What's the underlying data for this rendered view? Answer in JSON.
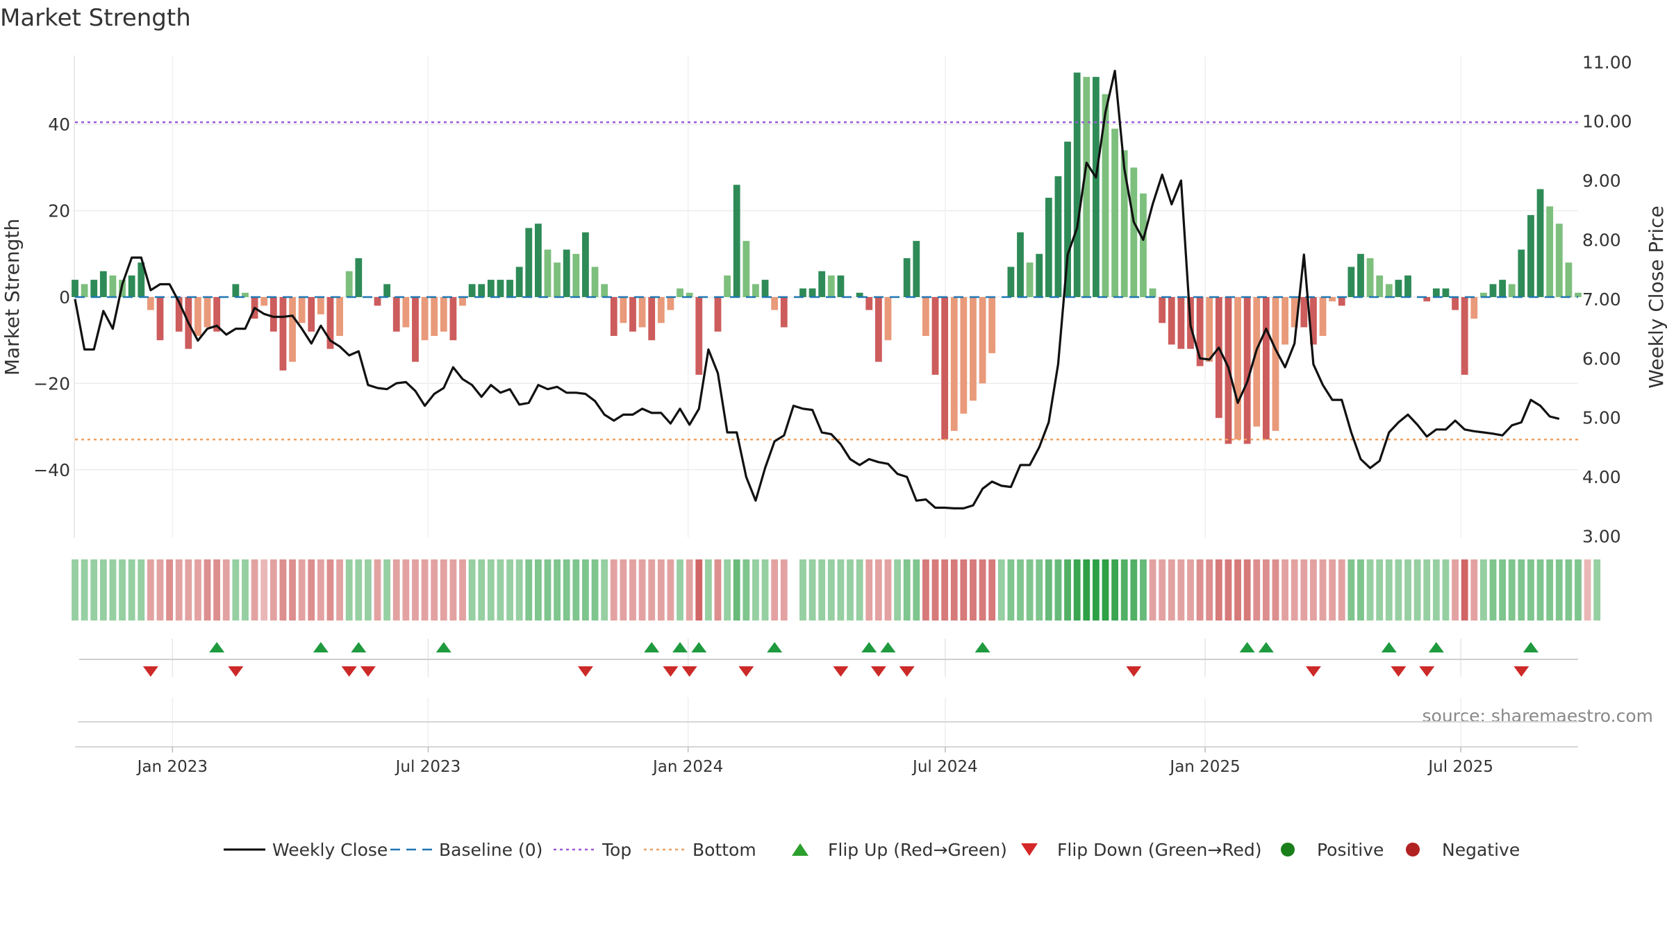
{
  "chart_data": {
    "type": "bar",
    "title": "Market Strength",
    "ylabel": "Market Strength",
    "y2label": "Weekly Close Price",
    "ylim": [
      -56,
      56
    ],
    "y2lim": [
      3.0,
      11.0
    ],
    "yticks": [
      40,
      20,
      0,
      -20,
      -40
    ],
    "y2ticks": [
      "3.00",
      "4.00",
      "5.00",
      "6.00",
      "7.00",
      "8.00",
      "9.00",
      "10.00",
      "11.00"
    ],
    "grid": true,
    "legend_position": "bottom",
    "source": "source: sharemaestro.com",
    "x_start": "2022-10-24",
    "x_end": "2025-09-22",
    "xticks": [
      {
        "date": "2023-01-01",
        "label": "Jan 2023"
      },
      {
        "date": "2023-07-01",
        "label": "Jul 2023"
      },
      {
        "date": "2024-01-01",
        "label": "Jan 2024"
      },
      {
        "date": "2024-07-01",
        "label": "Jul 2024"
      },
      {
        "date": "2025-01-01",
        "label": "Jan 2025"
      },
      {
        "date": "2025-07-01",
        "label": "Jul 2025"
      }
    ],
    "reference_lines": [
      {
        "name": "Baseline (0)",
        "value": 0,
        "color": "#1f77b4",
        "style": "dashed"
      },
      {
        "name": "Top",
        "value": 40.5,
        "color": "#9b59d6",
        "style": "dotted"
      },
      {
        "name": "Bottom",
        "value": -33,
        "color": "#f0a060",
        "style": "dotted"
      }
    ],
    "strength": [
      4,
      3,
      4,
      6,
      5,
      4,
      5,
      8,
      -3,
      -10,
      0,
      -8,
      -12,
      -9,
      -7,
      -8,
      0,
      3,
      1,
      -5,
      -2,
      -8,
      -17,
      -15,
      -6,
      -8,
      -4,
      -12,
      -9,
      6,
      9,
      0,
      -2,
      3,
      -8,
      -7,
      -15,
      -10,
      -9,
      -8,
      -10,
      -2,
      3,
      3,
      4,
      4,
      4,
      7,
      16,
      17,
      11,
      8,
      11,
      10,
      15,
      7,
      3,
      -9,
      -6,
      -8,
      -7,
      -10,
      -6,
      -3,
      2,
      1,
      -18,
      0,
      -8,
      5,
      26,
      13,
      3,
      4,
      -3,
      -7,
      0,
      2,
      2,
      6,
      5,
      5,
      0,
      1,
      -3,
      -15,
      -10,
      0,
      9,
      13,
      -9,
      -18,
      -33,
      -31,
      -27,
      -24,
      -20,
      -13,
      0,
      7,
      15,
      8,
      10,
      23,
      28,
      36,
      52,
      51,
      51,
      47,
      39,
      34,
      30,
      24,
      2,
      -6,
      -11,
      -12,
      -12,
      -16,
      -15,
      -28,
      -34,
      -33,
      -34,
      -30,
      -33,
      -31,
      -11,
      -7,
      -7,
      -11,
      -9,
      -1,
      -2,
      7,
      10,
      9,
      5,
      3,
      4,
      5,
      0,
      -1,
      2,
      2,
      -3,
      -18,
      -5,
      1,
      3,
      4,
      3,
      11,
      19,
      25,
      21,
      17,
      8,
      1
    ],
    "close": [
      7.0,
      6.15,
      6.15,
      6.8,
      6.5,
      7.25,
      7.7,
      7.7,
      7.15,
      7.25,
      7.25,
      6.95,
      6.6,
      6.3,
      6.5,
      6.55,
      6.4,
      6.5,
      6.5,
      6.85,
      6.75,
      6.7,
      6.7,
      6.72,
      6.5,
      6.25,
      6.55,
      6.3,
      6.2,
      6.05,
      6.12,
      5.55,
      5.5,
      5.48,
      5.58,
      5.6,
      5.45,
      5.2,
      5.4,
      5.5,
      5.85,
      5.65,
      5.55,
      5.35,
      5.55,
      5.42,
      5.48,
      5.22,
      5.25,
      5.55,
      5.48,
      5.52,
      5.42,
      5.42,
      5.4,
      5.28,
      5.05,
      4.95,
      5.05,
      5.05,
      5.15,
      5.08,
      5.08,
      4.9,
      5.15,
      4.88,
      5.15,
      6.15,
      5.75,
      4.75,
      4.75,
      4.0,
      3.6,
      4.15,
      4.6,
      4.7,
      5.2,
      5.15,
      5.13,
      4.75,
      4.72,
      4.55,
      4.3,
      4.2,
      4.3,
      4.25,
      4.22,
      4.05,
      4.0,
      3.6,
      3.62,
      3.48,
      3.48,
      3.47,
      3.47,
      3.52,
      3.8,
      3.92,
      3.85,
      3.83,
      4.2,
      4.2,
      4.5,
      4.92,
      5.9,
      7.75,
      8.2,
      9.3,
      9.05,
      10.15,
      10.85,
      9.2,
      8.3,
      8.0,
      8.6,
      9.1,
      8.6,
      9.0,
      6.55,
      6.0,
      5.98,
      6.18,
      5.85,
      5.25,
      5.6,
      6.15,
      6.5,
      6.15,
      5.85,
      6.25,
      7.75,
      5.9,
      5.55,
      5.3,
      5.3,
      4.75,
      4.3,
      4.15,
      4.27,
      4.75,
      4.92,
      5.05,
      4.88,
      4.68,
      4.8,
      4.8,
      4.95,
      4.8,
      4.77,
      4.75,
      4.73,
      4.7,
      4.87,
      4.92,
      5.3,
      5.2,
      5.02,
      4.98
    ],
    "bar_colors_by_level": {
      "strong_positive": "#2e8b57",
      "weak_positive": "#7dbf7d",
      "strong_negative": "#cd5c5c",
      "weak_negative": "#e99a7a"
    },
    "heat_strip": [
      2,
      2,
      2,
      2,
      2,
      2,
      2,
      2,
      -2,
      -2,
      -3,
      -2,
      -2,
      -2,
      -3,
      -3,
      -2,
      2,
      2,
      -2,
      -1,
      -2,
      -3,
      -3,
      -2,
      -3,
      -2,
      -3,
      -2,
      2,
      2,
      2,
      -2,
      2,
      -2,
      -2,
      -2,
      -2,
      -2,
      -2,
      -2,
      -2,
      2,
      2,
      2,
      2,
      2,
      2,
      3,
      3,
      3,
      3,
      3,
      3,
      3,
      3,
      2,
      -2,
      -2,
      -2,
      -2,
      -2,
      -2,
      -2,
      2,
      -2,
      -5,
      2,
      -3,
      2,
      4,
      3,
      2,
      2,
      -2,
      -2,
      0,
      2,
      2,
      2,
      2,
      2,
      2,
      2,
      -2,
      -2,
      -2,
      2,
      3,
      3,
      -4,
      -4,
      -4,
      -4,
      -4,
      -4,
      -4,
      -4,
      2,
      3,
      3,
      3,
      3,
      4,
      4,
      5,
      6,
      7,
      7,
      7,
      6,
      5,
      5,
      4,
      -2,
      -2,
      -2,
      -2,
      -2,
      -3,
      -3,
      -4,
      -4,
      -4,
      -4,
      -3,
      -3,
      -3,
      -2,
      -2,
      -2,
      -2,
      -2,
      -2,
      -2,
      3,
      3,
      2,
      2,
      2,
      2,
      2,
      2,
      2,
      2,
      2,
      -2,
      -5,
      -2,
      2,
      3,
      3,
      3,
      3,
      3,
      3,
      3,
      3,
      3,
      3,
      -1,
      2
    ],
    "flip_up_weeks": [
      15,
      26,
      30,
      39,
      61,
      64,
      66,
      74,
      84,
      86,
      96,
      124,
      126,
      139,
      144,
      154
    ],
    "flip_down_weeks": [
      8,
      17,
      29,
      31,
      54,
      63,
      65,
      71,
      81,
      85,
      88,
      112,
      131,
      140,
      143,
      153
    ],
    "legend": [
      {
        "label": "Weekly Close",
        "kind": "line",
        "color": "#000000"
      },
      {
        "label": "Baseline (0)",
        "kind": "dashed",
        "color": "#1f77b4"
      },
      {
        "label": "Top",
        "kind": "dotted",
        "color": "#9b59d6"
      },
      {
        "label": "Bottom",
        "kind": "dotted",
        "color": "#f0a060"
      },
      {
        "label": "Flip Up (Red→Green)",
        "kind": "up",
        "color": "#2ca02c"
      },
      {
        "label": "Flip Down (Green→Red)",
        "kind": "down",
        "color": "#d62728"
      },
      {
        "label": "Positive",
        "kind": "dot",
        "color": "#1a7f1a"
      },
      {
        "label": "Negative",
        "kind": "dot",
        "color": "#b22222"
      }
    ]
  }
}
